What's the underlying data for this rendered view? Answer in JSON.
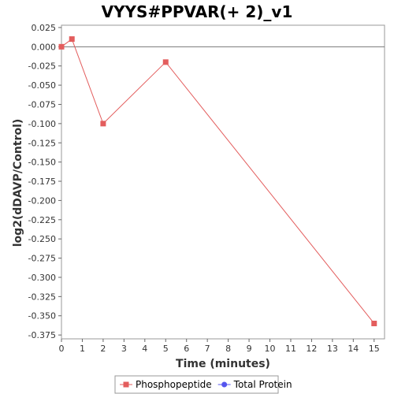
{
  "chart_data": {
    "type": "line",
    "title": "VYYS#PPVAR(+ 2)_v1",
    "xlabel": "Time (minutes)",
    "ylabel": "log2(dDAVP/Control)",
    "xlim": [
      0,
      15.5
    ],
    "ylim": [
      -0.38,
      0.028
    ],
    "x_ticks": [
      0,
      1,
      2,
      3,
      4,
      5,
      6,
      7,
      8,
      9,
      10,
      11,
      12,
      13,
      14,
      15
    ],
    "y_ticks": [
      0.025,
      0.0,
      -0.025,
      -0.05,
      -0.075,
      -0.1,
      -0.125,
      -0.15,
      -0.175,
      -0.2,
      -0.225,
      -0.25,
      -0.275,
      -0.3,
      -0.325,
      -0.35,
      -0.375
    ],
    "y_tick_labels": [
      "0.025",
      "0.000",
      "-0.025",
      "-0.050",
      "-0.075",
      "-0.100",
      "-0.125",
      "-0.150",
      "-0.175",
      "-0.200",
      "-0.225",
      "-0.250",
      "-0.275",
      "-0.300",
      "-0.325",
      "-0.350",
      "-0.375"
    ],
    "zero_line": true,
    "grid": false,
    "legend_position": "bottom",
    "series": [
      {
        "name": "Phosphopeptide",
        "color": "#e35d5d",
        "marker": "square",
        "x": [
          0,
          0.5,
          2,
          5,
          15
        ],
        "y": [
          0.0,
          0.01,
          -0.1,
          -0.02,
          -0.36
        ]
      },
      {
        "name": "Total Protein",
        "color": "#5555ee",
        "marker": "circle",
        "x": [],
        "y": []
      }
    ]
  }
}
